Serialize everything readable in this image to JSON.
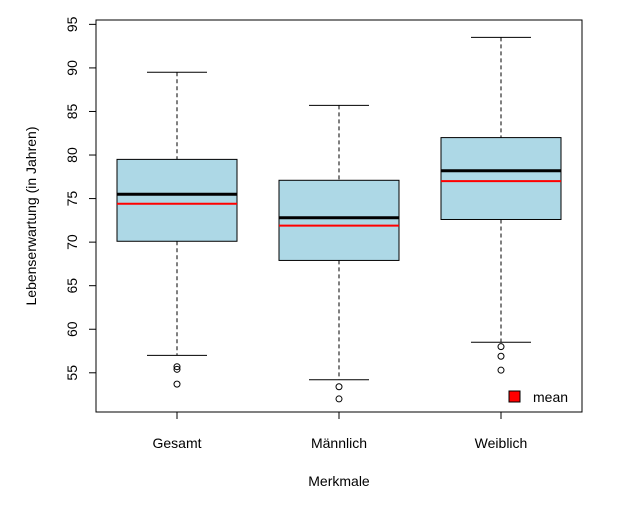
{
  "chart_data": {
    "type": "boxplot",
    "title": "",
    "xlabel": "Merkmale",
    "ylabel": "Lebenserwartung (in Jahren)",
    "ylim": [
      50.5,
      95.5
    ],
    "yticks": [
      "55",
      "60",
      "65",
      "70",
      "75",
      "80",
      "85",
      "90",
      "95"
    ],
    "grid": false,
    "legend": {
      "placement": "bottom-right",
      "label": "mean",
      "color": "#ff0000"
    },
    "colors": {
      "box_fill": "#add8e6",
      "median": "#000000",
      "mean": "#ff0000"
    },
    "categories": [
      "Gesamt",
      "Männlich",
      "Weiblich"
    ],
    "boxes": [
      {
        "whisker_low": 57.0,
        "q1": 70.1,
        "median": 75.5,
        "mean": 74.4,
        "q3": 79.5,
        "whisker_high": 89.5,
        "outliers": [
          55.7,
          55.4,
          53.7
        ]
      },
      {
        "whisker_low": 54.2,
        "q1": 67.9,
        "median": 72.8,
        "mean": 71.9,
        "q3": 77.1,
        "whisker_high": 85.7,
        "outliers": [
          53.4,
          52.0
        ]
      },
      {
        "whisker_low": 58.5,
        "q1": 72.6,
        "median": 78.2,
        "mean": 77.0,
        "q3": 82.0,
        "whisker_high": 93.5,
        "outliers": [
          58.0,
          56.9,
          55.3
        ]
      }
    ]
  }
}
